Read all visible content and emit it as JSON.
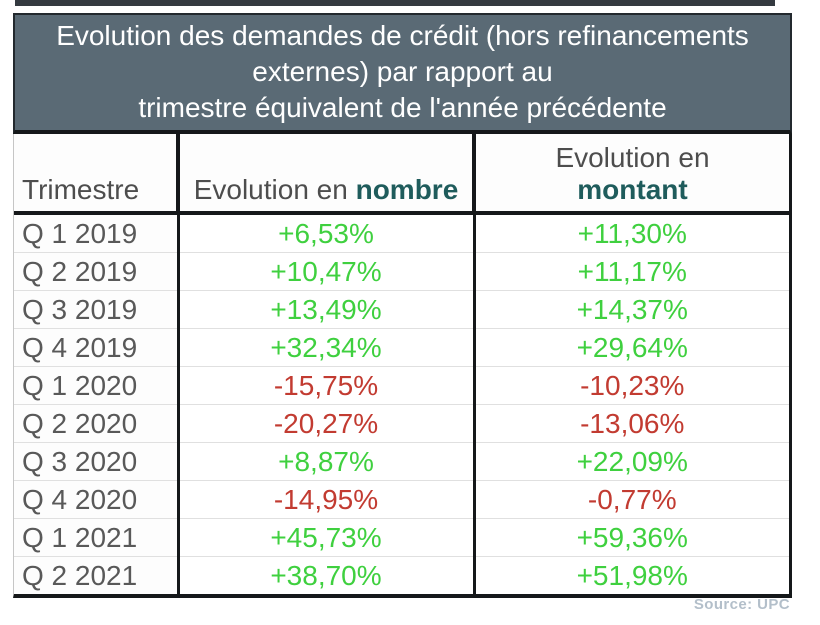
{
  "colors": {
    "title_background": "#5a6a75",
    "top_bar": "#343a40",
    "positive_value": "#3fd03f",
    "negative_value": "#c23b31",
    "header_accent": "#1f5c5c",
    "quarter_text": "#595959",
    "source_text": "#b3bfca",
    "border_black": "#15181a"
  },
  "title": {
    "full": "Evolution des demandes de crédit (hors refinancements externes) par rapport au trimestre équivalent de l'année précédente",
    "lines": [
      "Evolution des demandes de crédit (hors refinancements",
      "externes) par rapport au",
      "trimestre équivalent de l'année précédente"
    ]
  },
  "table": {
    "headers": {
      "trimestre": "Trimestre",
      "nombre_prefix": "Evolution en ",
      "nombre_bold": "nombre",
      "montant_prefix": "Evolution en",
      "montant_bold": "montant"
    },
    "rows": [
      {
        "quarter": "Q 1 2019",
        "nombre": "+6,53%",
        "montant": "+11,30%"
      },
      {
        "quarter": "Q 2 2019",
        "nombre": "+10,47%",
        "montant": "+11,17%"
      },
      {
        "quarter": "Q 3 2019",
        "nombre": "+13,49%",
        "montant": "+14,37%"
      },
      {
        "quarter": "Q 4 2019",
        "nombre": "+32,34%",
        "montant": "+29,64%"
      },
      {
        "quarter": "Q 1 2020",
        "nombre": "-15,75%",
        "montant": "-10,23%"
      },
      {
        "quarter": "Q 2 2020",
        "nombre": "-20,27%",
        "montant": "-13,06%"
      },
      {
        "quarter": "Q 3 2020",
        "nombre": "+8,87%",
        "montant": "+22,09%"
      },
      {
        "quarter": "Q 4 2020",
        "nombre": "-14,95%",
        "montant": "-0,77%"
      },
      {
        "quarter": "Q 1 2021",
        "nombre": "+45,73%",
        "montant": "+59,36%"
      },
      {
        "quarter": "Q 2 2021",
        "nombre": "+38,70%",
        "montant": "+51,98%"
      }
    ]
  },
  "source": "Source: UPC",
  "chart_data": {
    "type": "table",
    "title": "Evolution des demandes de crédit (hors refinancements externes) par rapport au trimestre équivalent de l'année précédente",
    "columns": [
      "Trimestre",
      "Evolution en nombre",
      "Evolution en montant"
    ],
    "categories": [
      "Q 1 2019",
      "Q 2 2019",
      "Q 3 2019",
      "Q 4 2019",
      "Q 1 2020",
      "Q 2 2020",
      "Q 3 2020",
      "Q 4 2020",
      "Q 1 2021",
      "Q 2 2021"
    ],
    "series": [
      {
        "name": "Evolution en nombre",
        "unit": "%",
        "values": [
          6.53,
          10.47,
          13.49,
          32.34,
          -15.75,
          -20.27,
          8.87,
          -14.95,
          45.73,
          38.7
        ]
      },
      {
        "name": "Evolution en montant",
        "unit": "%",
        "values": [
          11.3,
          11.17,
          14.37,
          29.64,
          -10.23,
          -13.06,
          22.09,
          -0.77,
          59.36,
          51.98
        ]
      }
    ],
    "value_color_rule": "positive values green, negative values red",
    "source": "Source: UPC"
  }
}
